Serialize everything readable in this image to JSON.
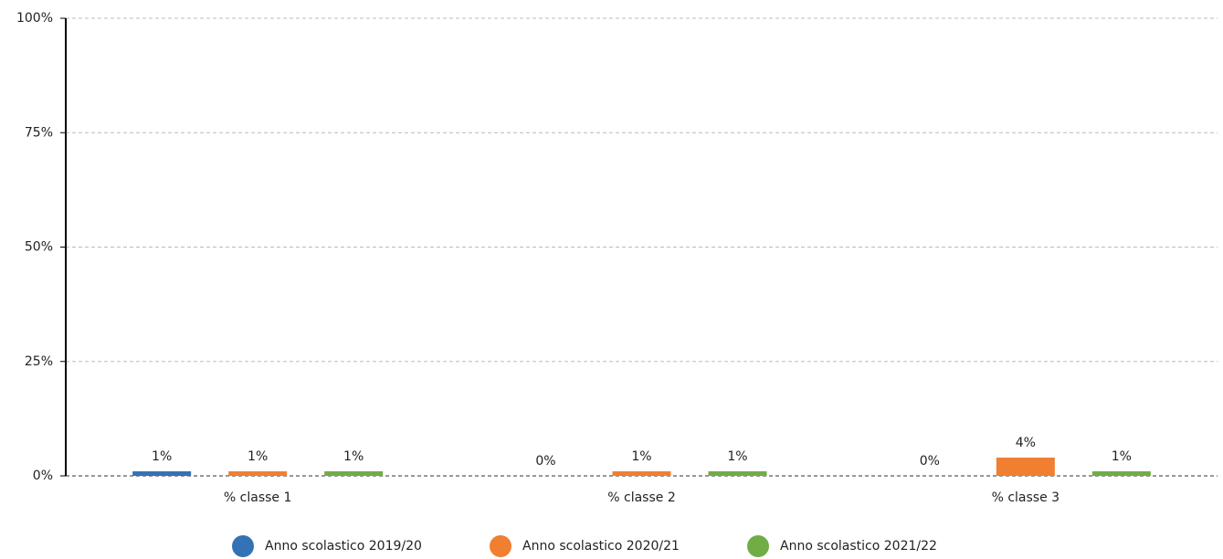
{
  "chart_data": {
    "type": "bar",
    "categories": [
      "% classe 1",
      "% classe 2",
      "% classe 3"
    ],
    "series": [
      {
        "name": "Anno scolastico 2019/20",
        "color": "#3373b5",
        "values": [
          1,
          0,
          0
        ],
        "value_labels": [
          "1%",
          "0%",
          "0%"
        ]
      },
      {
        "name": "Anno scolastico 2020/21",
        "color": "#f07f32",
        "values": [
          1,
          1,
          4
        ],
        "value_labels": [
          "1%",
          "1%",
          "4%"
        ]
      },
      {
        "name": "Anno scolastico 2021/22",
        "color": "#70ad47",
        "values": [
          1,
          1,
          1
        ],
        "value_labels": [
          "1%",
          "1%",
          "1%"
        ]
      }
    ],
    "ylim": [
      0,
      100
    ],
    "yticks": [
      {
        "value": 0,
        "label": "0%"
      },
      {
        "value": 25,
        "label": "25%"
      },
      {
        "value": 50,
        "label": "50%"
      },
      {
        "value": 75,
        "label": "75%"
      },
      {
        "value": 100,
        "label": "100%"
      }
    ],
    "grid": true,
    "legend": "bottom"
  }
}
